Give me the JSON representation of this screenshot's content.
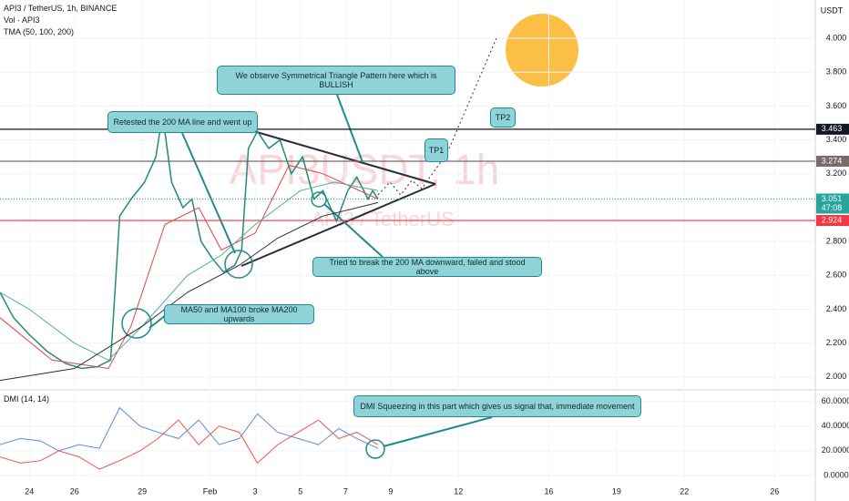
{
  "header": {
    "symbol": "API3 / TetherUS, 1h, BINANCE",
    "volume": "Vol · API3",
    "ma": "TMA (50, 100, 200)",
    "currency": "USDT",
    "watermark": "API3USDT, 1h",
    "watermark_sub": "API3 / TetherUS",
    "countdown": "47:08"
  },
  "annotations": [
    {
      "text": "We observe Symmetrical Triangle Pattern here which is BULLISH"
    },
    {
      "text": "Retested the 200 MA line and went up"
    },
    {
      "text": "Tried to break the 200 MA downward, failed and stood above"
    },
    {
      "text": "MA50 and MA100 broke MA200 upwards"
    },
    {
      "text": "DMI Squeezing in this part which gives us signal that, immediate movement"
    },
    {
      "text": "TP1"
    },
    {
      "text": "TP2"
    }
  ],
  "chart_data": [
    {
      "type": "line",
      "xlim": [
        22.7,
        58.8
      ],
      "ylim": [
        1.94,
        4.226
      ],
      "yticks": [
        {
          "value": 2,
          "label": "2.000"
        },
        {
          "value": 2.2,
          "label": "2.200"
        },
        {
          "value": 2.4,
          "label": "2.400"
        },
        {
          "value": 2.6,
          "label": "2.600"
        },
        {
          "value": 2.8,
          "label": "2.800"
        },
        {
          "value": 3.2,
          "label": "3.200"
        },
        {
          "value": 3.4,
          "label": "3.400"
        },
        {
          "value": 3.6,
          "label": "3.600"
        },
        {
          "value": 3.8,
          "label": "3.800"
        },
        {
          "value": 4,
          "label": "4.000"
        }
      ],
      "levels": [
        {
          "value": 3.463,
          "color": "#131722"
        },
        {
          "value": 3.274,
          "color": "#7a6a6a"
        },
        {
          "value": 3.051,
          "color": "#26a69a"
        },
        {
          "value": 2.924,
          "color": "#f23645"
        }
      ],
      "series": [
        {
          "color": "#22897f",
          "x": [
            22.7,
            23.3,
            24,
            24.8,
            25.6,
            26.3,
            27,
            27.6,
            28,
            28.5,
            29.1,
            29.6,
            29.9,
            30.3,
            30.8,
            31.2,
            31.6,
            32.1,
            32.6,
            33.1,
            33.4,
            33.7,
            34.1,
            34.6,
            35.1,
            35.6,
            36.1,
            36.6,
            37,
            37.6,
            38.1,
            38.5,
            39,
            39.2,
            39.44
          ],
          "values": [
            2.5,
            2.35,
            2.25,
            2.15,
            2.08,
            2.05,
            2.06,
            2.1,
            2.95,
            3.05,
            3.15,
            3.3,
            3.55,
            3.15,
            3.0,
            3.05,
            2.8,
            2.7,
            2.62,
            2.66,
            2.75,
            3.35,
            3.45,
            3.35,
            3.4,
            3.2,
            3.3,
            3.05,
            3.1,
            2.92,
            3.1,
            3.18,
            3.05,
            3.1,
            3.051
          ]
        },
        {
          "color": "#e0453a",
          "x": [
            22.7,
            25,
            27.5,
            28.5,
            30,
            31.5,
            32.5,
            34,
            35.5,
            37,
            39.44
          ],
          "values": [
            2.35,
            2.1,
            2.05,
            2.3,
            2.9,
            3.0,
            2.75,
            2.85,
            3.25,
            3.2,
            3.05
          ]
        },
        {
          "color": "#4cae9e",
          "x": [
            22.7,
            24,
            26,
            27.5,
            29,
            31,
            32.5,
            34,
            36,
            37.5,
            39.44
          ],
          "values": [
            2.5,
            2.4,
            2.2,
            2.1,
            2.3,
            2.6,
            2.72,
            2.9,
            3.1,
            3.15,
            3.1
          ]
        },
        {
          "color": "#2a2e39",
          "x": [
            22.7,
            26,
            29,
            31,
            33.3,
            35,
            37,
            39.44
          ],
          "values": [
            1.98,
            2.05,
            2.3,
            2.5,
            2.66,
            2.82,
            2.95,
            3.03
          ]
        }
      ]
    },
    {
      "type": "line",
      "title": "DMI (14, 14)",
      "xlim": [
        22.7,
        58.8
      ],
      "ylim": [
        -6,
        68
      ],
      "yticks": [
        {
          "value": 0,
          "label": "0.0000"
        },
        {
          "value": 20,
          "label": "20.0000"
        },
        {
          "value": 40,
          "label": "40.0000"
        },
        {
          "value": 60,
          "label": "60.0000"
        }
      ],
      "xticks": [
        {
          "value": 24,
          "label": "24"
        },
        {
          "value": 26,
          "label": "26"
        },
        {
          "value": 29,
          "label": "29"
        },
        {
          "value": 32,
          "label": "Feb"
        },
        {
          "value": 34,
          "label": "3"
        },
        {
          "value": 36,
          "label": "5"
        },
        {
          "value": 38,
          "label": "7"
        },
        {
          "value": 40,
          "label": "9"
        },
        {
          "value": 43,
          "label": "12"
        },
        {
          "value": 47,
          "label": "16"
        },
        {
          "value": 50,
          "label": "19"
        },
        {
          "value": 53,
          "label": "22"
        },
        {
          "value": 57,
          "label": "26"
        }
      ],
      "series": [
        {
          "color": "#5b8fd6",
          "x": [
            22.7,
            23.6,
            24.5,
            25.3,
            26.2,
            27.1,
            28,
            28.9,
            29.7,
            30.6,
            31.5,
            32.4,
            33.3,
            34.1,
            35,
            35.9,
            36.8,
            37.7,
            38.5,
            39.44
          ],
          "values": [
            25,
            30,
            28,
            20,
            25,
            22,
            55,
            40,
            35,
            30,
            45,
            25,
            30,
            50,
            35,
            30,
            25,
            38,
            30,
            22
          ]
        },
        {
          "color": "#f0564a",
          "x": [
            22.7,
            23.6,
            24.5,
            25.3,
            26.2,
            27.1,
            28,
            28.9,
            29.7,
            30.6,
            31.5,
            32.4,
            33.3,
            34.1,
            35,
            35.9,
            36.8,
            37.7,
            38.5,
            39.44
          ],
          "values": [
            15,
            10,
            12,
            20,
            15,
            5,
            12,
            20,
            30,
            45,
            25,
            40,
            35,
            10,
            25,
            35,
            45,
            30,
            35,
            25
          ]
        }
      ]
    }
  ]
}
